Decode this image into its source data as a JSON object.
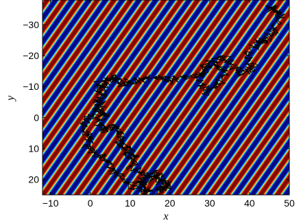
{
  "chart_data": {
    "type": "heatmap",
    "title": "",
    "xlabel": "x",
    "ylabel": "y",
    "xlim": [
      -12,
      50
    ],
    "ylim": [
      -38,
      25
    ],
    "y_axis_reversed": true,
    "x_ticks": [
      -10,
      0,
      10,
      20,
      30,
      40,
      50
    ],
    "x_tick_labels": [
      "−10",
      "0",
      "10",
      "20",
      "30",
      "40",
      "50"
    ],
    "y_ticks": [
      -30,
      -20,
      -10,
      0,
      10,
      20
    ],
    "y_tick_labels": [
      "−30",
      "−20",
      "−10",
      "0",
      "10",
      "20"
    ],
    "background_field": {
      "description": "periodic diagonal stripe pattern",
      "stripe_period_x": 4.2,
      "stripe_slope": 0.55,
      "colormap": [
        "#00007f",
        "#0050ff",
        "#00d5ff",
        "#7fff7f",
        "#ffe500",
        "#ff4500",
        "#7f0000"
      ]
    },
    "trajectory": {
      "color": "#000000",
      "waypoints_x": [
        2,
        3,
        1,
        4,
        2,
        3,
        6,
        8,
        7,
        10,
        9,
        12,
        10,
        14,
        12,
        16,
        19,
        17,
        20,
        18,
        16,
        13,
        15,
        11,
        8,
        6,
        4,
        1,
        -1,
        0,
        -2,
        1,
        3,
        2,
        4,
        6,
        8,
        12,
        16,
        20,
        24,
        28,
        30,
        27,
        29,
        32,
        34,
        31,
        33,
        36,
        38,
        41,
        39,
        42,
        44,
        46,
        48,
        45,
        47
      ],
      "waypoints_y": [
        -11,
        -7,
        -3,
        -1,
        1,
        4,
        3,
        6,
        9,
        10,
        13,
        12,
        16,
        18,
        21,
        19,
        22,
        24,
        22,
        20,
        18,
        22,
        24,
        23,
        20,
        17,
        14,
        11,
        9,
        6,
        2,
        -1,
        -4,
        -8,
        -12,
        -13,
        -11,
        -12,
        -13,
        -12,
        -13,
        -14,
        -18,
        -14,
        -8,
        -11,
        -15,
        -17,
        -20,
        -17,
        -14,
        -16,
        -20,
        -24,
        -25,
        -28,
        -33,
        -36,
        -34
      ]
    }
  }
}
